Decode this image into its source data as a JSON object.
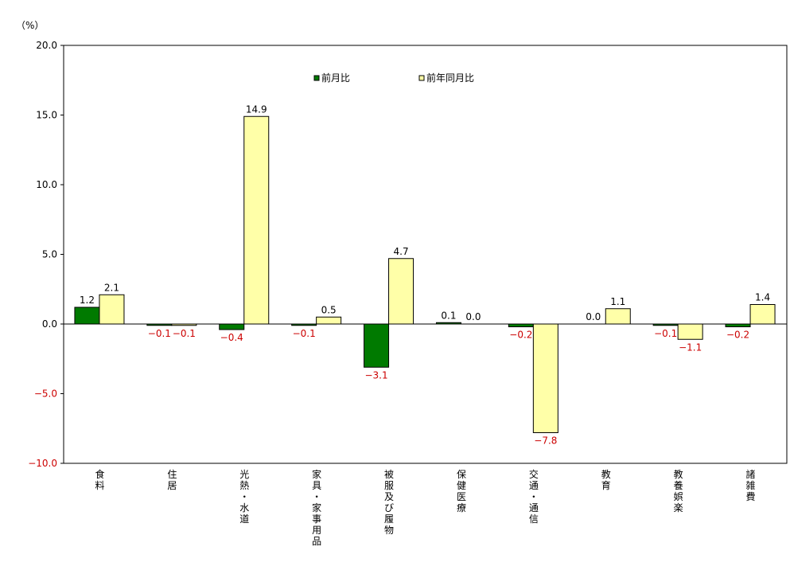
{
  "chart_data": {
    "type": "bar",
    "unit_label": "（%）",
    "ylim": [
      -10,
      20
    ],
    "yticks": [
      "20.0",
      "15.0",
      "10.0",
      "5.0",
      "0.0",
      "−5.0",
      "−10.0"
    ],
    "ytick_values": [
      20,
      15,
      10,
      5,
      0,
      -5,
      -10
    ],
    "grid": false,
    "legend_position": "top-center",
    "categories": [
      "食料",
      "住居",
      "光熱・水道",
      "家具・家事用品",
      "被服及び履物",
      "保健医療",
      "交通・通信",
      "教育",
      "教養娯楽",
      "諸雑費"
    ],
    "series": [
      {
        "name": "前月比",
        "color": "#007a00",
        "values": [
          1.2,
          -0.1,
          -0.4,
          -0.1,
          -3.1,
          0.1,
          -0.2,
          0.0,
          -0.1,
          -0.2
        ],
        "labels": [
          "1.2",
          "−0.1",
          "−0.4",
          "−0.1",
          "−3.1",
          "0.1",
          "−0.2",
          "0.0",
          "−0.1",
          "−0.2"
        ]
      },
      {
        "name": "前年同月比",
        "color": "#ffffa8",
        "values": [
          2.1,
          -0.1,
          14.9,
          0.5,
          4.7,
          0.0,
          -7.8,
          1.1,
          -1.1,
          1.4
        ],
        "labels": [
          "2.1",
          "−0.1",
          "14.9",
          "0.5",
          "4.7",
          "0.0",
          "−7.8",
          "1.1",
          "−1.1",
          "1.4"
        ]
      }
    ],
    "positive_label_color": "#000000",
    "negative_label_color": "#cc0000"
  }
}
